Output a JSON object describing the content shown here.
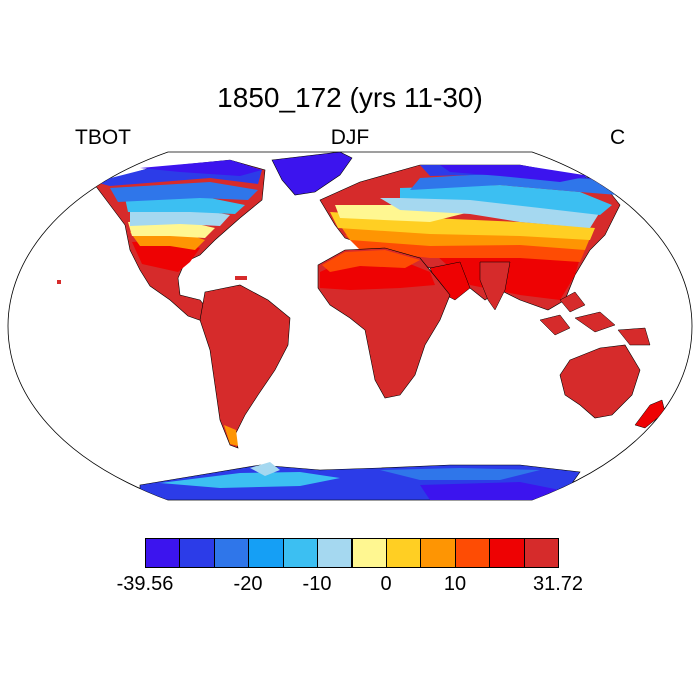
{
  "header": {
    "title": "1850_172 (yrs 11-30)",
    "left_label": "TBOT",
    "center_label": "DJF",
    "right_label": "C"
  },
  "colorbar": {
    "colors": [
      "#3c14ee",
      "#2c3ce8",
      "#2f76ea",
      "#159ff5",
      "#3cbff2",
      "#a5d8f0",
      "#fff791",
      "#ffcf23",
      "#fe9503",
      "#fe4c04",
      "#ee0203",
      "#d62b2b"
    ],
    "labels": [
      "-39.56",
      "-20",
      "-10",
      "0",
      "10",
      "31.72"
    ]
  },
  "map": {
    "colors": {
      "ocean": "#ffffff",
      "very_cold": "#3c14ee",
      "cold": "#2c3ce8",
      "cool": "#2f76ea",
      "chilly": "#159ff5",
      "cold_light": "#3cbff2",
      "pale": "#a5d8f0",
      "mild": "#fff791",
      "warm": "#ffcf23",
      "warm2": "#fe9503",
      "hot": "#fe4c04",
      "hotter": "#ee0203",
      "hottest": "#d62b2b"
    }
  }
}
